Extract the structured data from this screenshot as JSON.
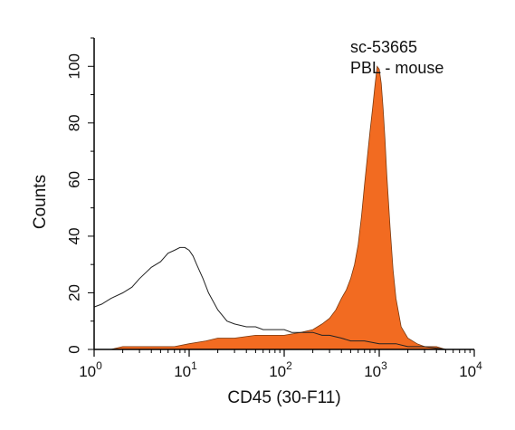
{
  "chart_data": {
    "type": "area",
    "xlabel": "CD45 (30-F11)",
    "ylabel": "Counts",
    "x_scale": "log",
    "xlim": [
      1,
      10000
    ],
    "ylim": [
      0,
      110
    ],
    "xticks": [
      {
        "value": 1,
        "base": "10",
        "exp": "0"
      },
      {
        "value": 10,
        "base": "10",
        "exp": "1"
      },
      {
        "value": 100,
        "base": "10",
        "exp": "2"
      },
      {
        "value": 1000,
        "base": "10",
        "exp": "3"
      },
      {
        "value": 10000,
        "base": "10",
        "exp": "4"
      }
    ],
    "yticks": [
      {
        "value": 0,
        "label": "0"
      },
      {
        "value": 20,
        "label": "20"
      },
      {
        "value": 40,
        "label": "40"
      },
      {
        "value": 60,
        "label": "60"
      },
      {
        "value": 80,
        "label": "80"
      },
      {
        "value": 100,
        "label": "100"
      }
    ],
    "annotation_lines": [
      "sc-53665",
      "PBL - mouse"
    ],
    "grid": false,
    "series": [
      {
        "style": "outline",
        "color": "#222222",
        "x": [
          1,
          1.2,
          1.5,
          2,
          2.5,
          3,
          4,
          5,
          6,
          7,
          8,
          9,
          10,
          11,
          12,
          14,
          16,
          20,
          25,
          30,
          40,
          50,
          60,
          80,
          100,
          120,
          150,
          200,
          250,
          300,
          400,
          500,
          700,
          1000,
          1500,
          2000,
          3000,
          5000,
          7000
        ],
        "y": [
          15,
          16,
          18,
          20,
          22,
          25,
          29,
          31,
          34,
          35,
          36,
          36,
          35,
          33,
          30,
          25,
          20,
          14,
          10,
          9,
          8,
          8,
          7,
          7,
          7,
          6,
          6,
          6,
          5,
          5,
          4,
          3,
          3,
          2,
          2,
          1,
          1,
          0,
          0
        ]
      },
      {
        "style": "filled",
        "color": "#f26b21",
        "x": [
          1.5,
          2,
          3,
          5,
          7,
          10,
          15,
          20,
          30,
          50,
          70,
          100,
          150,
          200,
          250,
          300,
          350,
          400,
          450,
          500,
          550,
          600,
          650,
          700,
          750,
          800,
          850,
          900,
          950,
          1000,
          1050,
          1100,
          1150,
          1200,
          1300,
          1400,
          1500,
          1700,
          2000,
          2500,
          3000,
          4000,
          5000,
          7000
        ],
        "y": [
          0,
          1,
          1,
          1,
          1,
          2,
          3,
          4,
          4,
          5,
          5,
          5,
          6,
          7,
          9,
          11,
          14,
          18,
          21,
          25,
          30,
          37,
          47,
          58,
          68,
          77,
          85,
          93,
          100,
          99,
          94,
          85,
          74,
          62,
          43,
          28,
          18,
          8,
          4,
          2,
          1,
          1,
          0,
          0
        ]
      }
    ]
  }
}
